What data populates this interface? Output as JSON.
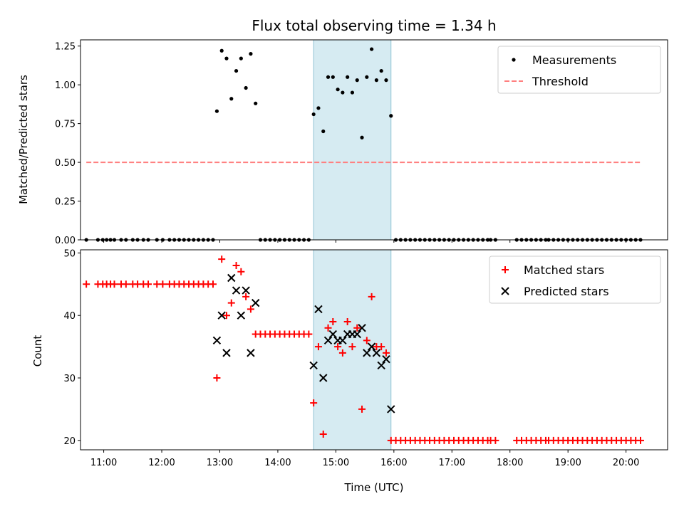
{
  "chart_data": [
    {
      "type": "scatter",
      "title": "Flux total observing time = 1.34 h",
      "xlabel": "",
      "ylabel": "Matched/Predicted stars",
      "xlim": [
        "10:36",
        "20:43"
      ],
      "ylim": [
        0,
        1.29
      ],
      "yticks": [
        "0.00",
        "0.25",
        "0.50",
        "0.75",
        "1.00",
        "1.25"
      ],
      "xticks": [
        "11:00",
        "12:00",
        "13:00",
        "14:00",
        "15:00",
        "16:00",
        "17:00",
        "18:00",
        "19:00",
        "20:00"
      ],
      "grid": false,
      "legend_position": "top-right",
      "shaded_interval": [
        "14:37",
        "15:57"
      ],
      "series": [
        {
          "name": "Measurements",
          "kind": "points",
          "color": "#000000",
          "points": [
            [
              "10:42",
              0
            ],
            [
              "10:54",
              0
            ],
            [
              "10:59",
              0
            ],
            [
              "11:03",
              0
            ],
            [
              "11:07",
              0
            ],
            [
              "11:11",
              0
            ],
            [
              "11:18",
              0
            ],
            [
              "11:23",
              0
            ],
            [
              "11:30",
              0
            ],
            [
              "11:35",
              0
            ],
            [
              "11:41",
              0
            ],
            [
              "11:46",
              0
            ],
            [
              "11:55",
              0
            ],
            [
              "12:01",
              0
            ],
            [
              "12:08",
              0
            ],
            [
              "12:13",
              0
            ],
            [
              "12:18",
              0
            ],
            [
              "12:23",
              0
            ],
            [
              "12:28",
              0
            ],
            [
              "12:33",
              0
            ],
            [
              "12:38",
              0
            ],
            [
              "12:43",
              0
            ],
            [
              "12:48",
              0
            ],
            [
              "12:53",
              0
            ],
            [
              "12:57",
              0.83
            ],
            [
              "13:02",
              1.22
            ],
            [
              "13:07",
              1.17
            ],
            [
              "13:12",
              0.91
            ],
            [
              "13:17",
              1.09
            ],
            [
              "13:22",
              1.17
            ],
            [
              "13:27",
              0.98
            ],
            [
              "13:32",
              1.2
            ],
            [
              "13:37",
              0.88
            ],
            [
              "13:42",
              0
            ],
            [
              "13:47",
              0
            ],
            [
              "13:52",
              0
            ],
            [
              "13:57",
              0
            ],
            [
              "14:02",
              0
            ],
            [
              "14:07",
              0
            ],
            [
              "14:12",
              0
            ],
            [
              "14:17",
              0
            ],
            [
              "14:22",
              0
            ],
            [
              "14:27",
              0
            ],
            [
              "14:32",
              0
            ],
            [
              "14:37",
              0.81
            ],
            [
              "14:42",
              0.85
            ],
            [
              "14:47",
              0.7
            ],
            [
              "14:52",
              1.05
            ],
            [
              "14:57",
              1.05
            ],
            [
              "15:02",
              0.97
            ],
            [
              "15:07",
              0.95
            ],
            [
              "15:12",
              1.05
            ],
            [
              "15:17",
              0.95
            ],
            [
              "15:22",
              1.03
            ],
            [
              "15:27",
              0.66
            ],
            [
              "15:32",
              1.05
            ],
            [
              "15:37",
              1.23
            ],
            [
              "15:42",
              1.03
            ],
            [
              "15:47",
              1.09
            ],
            [
              "15:52",
              1.03
            ],
            [
              "15:57",
              0.8
            ],
            [
              "16:02",
              0
            ],
            [
              "16:07",
              0
            ],
            [
              "16:12",
              0
            ],
            [
              "16:17",
              0
            ],
            [
              "16:22",
              0
            ],
            [
              "16:27",
              0
            ],
            [
              "16:32",
              0
            ],
            [
              "16:37",
              0
            ],
            [
              "16:42",
              0
            ],
            [
              "16:47",
              0
            ],
            [
              "16:52",
              0
            ],
            [
              "16:57",
              0
            ],
            [
              "17:02",
              0
            ],
            [
              "17:07",
              0
            ],
            [
              "17:12",
              0
            ],
            [
              "17:17",
              0
            ],
            [
              "17:22",
              0
            ],
            [
              "17:27",
              0
            ],
            [
              "17:32",
              0
            ],
            [
              "17:37",
              0
            ],
            [
              "17:40",
              0
            ],
            [
              "17:45",
              0
            ],
            [
              "18:07",
              0
            ],
            [
              "18:12",
              0
            ],
            [
              "18:17",
              0
            ],
            [
              "18:22",
              0
            ],
            [
              "18:27",
              0
            ],
            [
              "18:32",
              0
            ],
            [
              "18:37",
              0
            ],
            [
              "18:40",
              0
            ],
            [
              "18:45",
              0
            ],
            [
              "18:50",
              0
            ],
            [
              "18:55",
              0
            ],
            [
              "19:00",
              0
            ],
            [
              "19:05",
              0
            ],
            [
              "19:10",
              0
            ],
            [
              "19:15",
              0
            ],
            [
              "19:20",
              0
            ],
            [
              "19:25",
              0
            ],
            [
              "19:30",
              0
            ],
            [
              "19:35",
              0
            ],
            [
              "19:40",
              0
            ],
            [
              "19:45",
              0
            ],
            [
              "19:50",
              0
            ],
            [
              "19:55",
              0
            ],
            [
              "20:00",
              0
            ],
            [
              "20:05",
              0
            ],
            [
              "20:10",
              0
            ],
            [
              "20:15",
              0
            ]
          ]
        },
        {
          "name": "Threshold",
          "kind": "dashed-line",
          "color": "#ff7f7f",
          "points": [
            [
              "10:42",
              0.5
            ],
            [
              "20:15",
              0.5
            ]
          ]
        }
      ]
    },
    {
      "type": "scatter",
      "title": "",
      "xlabel": "Time (UTC)",
      "ylabel": "Count",
      "xlim": [
        "10:36",
        "20:43"
      ],
      "ylim": [
        18.5,
        50.5
      ],
      "yticks": [
        "20",
        "30",
        "40",
        "50"
      ],
      "xticks": [
        "11:00",
        "12:00",
        "13:00",
        "14:00",
        "15:00",
        "16:00",
        "17:00",
        "18:00",
        "19:00",
        "20:00"
      ],
      "grid": false,
      "legend_position": "top-right",
      "shaded_interval": [
        "14:37",
        "15:57"
      ],
      "series": [
        {
          "name": "Matched stars",
          "kind": "plus",
          "color": "#ff0000",
          "points": [
            [
              "10:42",
              45
            ],
            [
              "10:54",
              45
            ],
            [
              "10:59",
              45
            ],
            [
              "11:03",
              45
            ],
            [
              "11:07",
              45
            ],
            [
              "11:11",
              45
            ],
            [
              "11:18",
              45
            ],
            [
              "11:23",
              45
            ],
            [
              "11:30",
              45
            ],
            [
              "11:35",
              45
            ],
            [
              "11:41",
              45
            ],
            [
              "11:46",
              45
            ],
            [
              "11:55",
              45
            ],
            [
              "12:01",
              45
            ],
            [
              "12:08",
              45
            ],
            [
              "12:13",
              45
            ],
            [
              "12:18",
              45
            ],
            [
              "12:23",
              45
            ],
            [
              "12:28",
              45
            ],
            [
              "12:33",
              45
            ],
            [
              "12:38",
              45
            ],
            [
              "12:43",
              45
            ],
            [
              "12:48",
              45
            ],
            [
              "12:53",
              45
            ],
            [
              "12:57",
              30
            ],
            [
              "13:02",
              49
            ],
            [
              "13:07",
              40
            ],
            [
              "13:12",
              42
            ],
            [
              "13:17",
              48
            ],
            [
              "13:22",
              47
            ],
            [
              "13:27",
              43
            ],
            [
              "13:32",
              41
            ],
            [
              "13:37",
              37
            ],
            [
              "13:42",
              37
            ],
            [
              "13:47",
              37
            ],
            [
              "13:52",
              37
            ],
            [
              "13:57",
              37
            ],
            [
              "14:02",
              37
            ],
            [
              "14:07",
              37
            ],
            [
              "14:12",
              37
            ],
            [
              "14:17",
              37
            ],
            [
              "14:22",
              37
            ],
            [
              "14:27",
              37
            ],
            [
              "14:32",
              37
            ],
            [
              "14:37",
              26
            ],
            [
              "14:42",
              35
            ],
            [
              "14:47",
              21
            ],
            [
              "14:52",
              38
            ],
            [
              "14:57",
              39
            ],
            [
              "15:02",
              35
            ],
            [
              "15:07",
              34
            ],
            [
              "15:12",
              39
            ],
            [
              "15:17",
              35
            ],
            [
              "15:22",
              38
            ],
            [
              "15:27",
              25
            ],
            [
              "15:32",
              36
            ],
            [
              "15:37",
              43
            ],
            [
              "15:42",
              35
            ],
            [
              "15:47",
              35
            ],
            [
              "15:52",
              34
            ],
            [
              "15:57",
              20
            ],
            [
              "16:02",
              20
            ],
            [
              "16:07",
              20
            ],
            [
              "16:12",
              20
            ],
            [
              "16:17",
              20
            ],
            [
              "16:22",
              20
            ],
            [
              "16:27",
              20
            ],
            [
              "16:32",
              20
            ],
            [
              "16:37",
              20
            ],
            [
              "16:42",
              20
            ],
            [
              "16:47",
              20
            ],
            [
              "16:52",
              20
            ],
            [
              "16:57",
              20
            ],
            [
              "17:02",
              20
            ],
            [
              "17:07",
              20
            ],
            [
              "17:12",
              20
            ],
            [
              "17:17",
              20
            ],
            [
              "17:22",
              20
            ],
            [
              "17:27",
              20
            ],
            [
              "17:32",
              20
            ],
            [
              "17:37",
              20
            ],
            [
              "17:40",
              20
            ],
            [
              "17:45",
              20
            ],
            [
              "18:07",
              20
            ],
            [
              "18:12",
              20
            ],
            [
              "18:17",
              20
            ],
            [
              "18:22",
              20
            ],
            [
              "18:27",
              20
            ],
            [
              "18:32",
              20
            ],
            [
              "18:37",
              20
            ],
            [
              "18:40",
              20
            ],
            [
              "18:45",
              20
            ],
            [
              "18:50",
              20
            ],
            [
              "18:55",
              20
            ],
            [
              "19:00",
              20
            ],
            [
              "19:05",
              20
            ],
            [
              "19:10",
              20
            ],
            [
              "19:15",
              20
            ],
            [
              "19:20",
              20
            ],
            [
              "19:25",
              20
            ],
            [
              "19:30",
              20
            ],
            [
              "19:35",
              20
            ],
            [
              "19:40",
              20
            ],
            [
              "19:45",
              20
            ],
            [
              "19:50",
              20
            ],
            [
              "19:55",
              20
            ],
            [
              "20:00",
              20
            ],
            [
              "20:05",
              20
            ],
            [
              "20:10",
              20
            ],
            [
              "20:15",
              20
            ]
          ]
        },
        {
          "name": "Predicted stars",
          "kind": "x",
          "color": "#000000",
          "points": [
            [
              "12:57",
              36
            ],
            [
              "13:02",
              40
            ],
            [
              "13:07",
              34
            ],
            [
              "13:12",
              46
            ],
            [
              "13:17",
              44
            ],
            [
              "13:22",
              40
            ],
            [
              "13:27",
              44
            ],
            [
              "13:32",
              34
            ],
            [
              "13:37",
              42
            ],
            [
              "14:37",
              32
            ],
            [
              "14:42",
              41
            ],
            [
              "14:47",
              30
            ],
            [
              "14:52",
              36
            ],
            [
              "14:57",
              37
            ],
            [
              "15:02",
              36
            ],
            [
              "15:07",
              36
            ],
            [
              "15:12",
              37
            ],
            [
              "15:17",
              37
            ],
            [
              "15:22",
              37
            ],
            [
              "15:27",
              38
            ],
            [
              "15:32",
              34
            ],
            [
              "15:37",
              35
            ],
            [
              "15:42",
              34
            ],
            [
              "15:47",
              32
            ],
            [
              "15:52",
              33
            ],
            [
              "15:57",
              25
            ]
          ]
        }
      ]
    }
  ]
}
